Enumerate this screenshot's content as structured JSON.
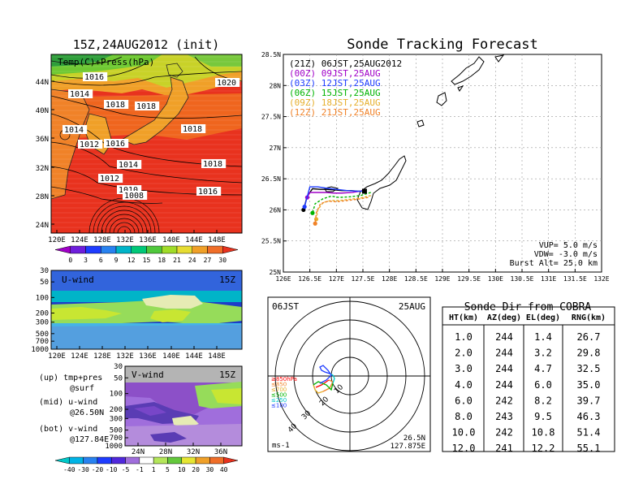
{
  "map_panel": {
    "title": "15Z,24AUG2012 (init)",
    "label": "Temp(C)+Press(hPa)",
    "lat_ticks": [
      "44N",
      "40N",
      "36N",
      "32N",
      "28N",
      "24N"
    ],
    "lon_ticks": [
      "120E",
      "124E",
      "128E",
      "132E",
      "136E",
      "140E",
      "144E",
      "148E"
    ],
    "isobar_labels": [
      "1016",
      "1014",
      "1018",
      "1018",
      "1020",
      "1014",
      "1012",
      "1016",
      "1014",
      "1018",
      "1012",
      "1010",
      "1008",
      "1016",
      "1018"
    ],
    "colorbar_ticks": [
      "0",
      "3",
      "6",
      "9",
      "12",
      "15",
      "18",
      "21",
      "24",
      "27",
      "30"
    ]
  },
  "u_panel": {
    "label": "U-wind",
    "time": "15Z",
    "y_ticks": [
      "30",
      "50",
      "100",
      "200",
      "300",
      "500",
      "700",
      "1000"
    ],
    "x_ticks": [
      "120E",
      "124E",
      "128E",
      "132E",
      "136E",
      "140E",
      "144E",
      "148E"
    ]
  },
  "v_panel": {
    "label": "V-wind",
    "time": "15Z",
    "y_ticks": [
      "30",
      "50",
      "100",
      "200",
      "300",
      "500",
      "700",
      "1000"
    ],
    "x_ticks": [
      "24N",
      "28N",
      "32N",
      "36N"
    ],
    "colorbar_ticks": [
      "-40",
      "-30",
      "-20",
      "-10",
      "-5",
      "-1",
      "1",
      "5",
      "10",
      "20",
      "30",
      "40"
    ]
  },
  "notes": [
    {
      "line1": "(up) tmp+pres",
      "line2": "@surf"
    },
    {
      "line1": "(mid) u-wind",
      "line2": "@26.50N"
    },
    {
      "line1": "(bot) v-wind",
      "line2": "@127.84E"
    }
  ],
  "tracking": {
    "title": "Sonde Tracking Forecast",
    "lat_ticks": [
      "28.5N",
      "28N",
      "27.5N",
      "27N",
      "26.5N",
      "26N",
      "25.5N",
      "25N"
    ],
    "lon_ticks": [
      "126E",
      "126.5E",
      "127E",
      "127.5E",
      "128E",
      "128.5E",
      "129E",
      "129.5E",
      "130E",
      "130.5E",
      "131E",
      "131.5E",
      "132E"
    ],
    "legend": [
      {
        "label": "(21Z)  06JST,25AUG2012",
        "color": "#000000"
      },
      {
        "label": "(00Z)  09JST,25AUG",
        "color": "#a000c8"
      },
      {
        "label": "(03Z)  12JST,25AUG",
        "color": "#1e3cff"
      },
      {
        "label": "(06Z)  15JST,25AUG",
        "color": "#00b400"
      },
      {
        "label": "(09Z)  18JST,25AUG",
        "color": "#e6af2d"
      },
      {
        "label": "(12Z)  21JST,25AUG",
        "color": "#f08228"
      }
    ],
    "info": [
      "VUP=  5.0  m/s",
      "VDW= -3.0  m/s",
      "Burst Alt=  25.0  km"
    ]
  },
  "hodograph": {
    "time_left": "06JST",
    "time_right": "25AUG",
    "pressure_labels": [
      {
        "text": "≥850hPa",
        "color": "#ff0000"
      },
      {
        "text": "≤850",
        "color": "#f08228"
      },
      {
        "text": "≤700",
        "color": "#e6af2d"
      },
      {
        "text": "≤500",
        "color": "#00b400"
      },
      {
        "text": "≤250",
        "color": "#00c8c8"
      },
      {
        "text": "≤100",
        "color": "#1e3cff"
      }
    ],
    "ring_labels": [
      "10",
      "20",
      "30",
      "40"
    ],
    "unit": "ms-1",
    "loc_lat": "26.5N",
    "loc_lon": "127.875E"
  },
  "sonde_dir": {
    "title": "Sonde Dir from COBRA",
    "headers": [
      "HT(km)",
      "AZ(deg)",
      "EL(deg)",
      "RNG(km)"
    ],
    "rows": [
      [
        "1.0",
        "244",
        "1.4",
        "26.7"
      ],
      [
        "2.0",
        "244",
        "3.2",
        "29.8"
      ],
      [
        "3.0",
        "244",
        "4.7",
        "32.5"
      ],
      [
        "4.0",
        "244",
        "6.0",
        "35.0"
      ],
      [
        "6.0",
        "242",
        "8.2",
        "39.7"
      ],
      [
        "8.0",
        "243",
        "9.5",
        "46.3"
      ],
      [
        "10.0",
        "242",
        "10.8",
        "51.4"
      ],
      [
        "12.0",
        "241",
        "12.2",
        "55.1"
      ]
    ]
  },
  "chart_data": [
    {
      "type": "heatmap",
      "title": "15Z,24AUG2012 (init)",
      "variable": "Temp(C)+Press(hPa)",
      "xlabel": "",
      "ylabel": "",
      "xlim": [
        "120E",
        "150E"
      ],
      "ylim": [
        "22N",
        "47N"
      ],
      "colorbar": [
        0,
        3,
        6,
        9,
        12,
        15,
        18,
        21,
        24,
        27,
        30
      ]
    },
    {
      "type": "heatmap",
      "title": "U-wind",
      "xlim": [
        "120E",
        "150E"
      ],
      "ylim_hPa": [
        1000,
        30
      ],
      "colorbar": [
        -40,
        -30,
        -20,
        -10,
        -5,
        -1,
        1,
        5,
        10,
        20,
        30,
        40
      ]
    },
    {
      "type": "heatmap",
      "title": "V-wind",
      "xlim": [
        "22N",
        "40N"
      ],
      "ylim_hPa": [
        1000,
        30
      ],
      "colorbar": [
        -40,
        -30,
        -20,
        -10,
        -5,
        -1,
        1,
        5,
        10,
        20,
        30,
        40
      ]
    },
    {
      "type": "line",
      "title": "Sonde Tracking Forecast",
      "xlim": [
        126,
        132
      ],
      "ylim": [
        25,
        28.5
      ],
      "series": [
        {
          "name": "(21Z) 06JST,25AUG2012",
          "color": "#000000",
          "x": [
            127.53,
            127.4,
            127.28,
            127.1,
            126.98,
            126.82,
            126.7,
            126.55,
            126.45,
            126.38
          ],
          "y": [
            26.3,
            26.3,
            26.31,
            26.31,
            26.32,
            26.33,
            26.33,
            26.34,
            26.22,
            26.0
          ]
        },
        {
          "name": "(00Z) 09JST,25AUG",
          "color": "#a000c8",
          "x": [
            127.57,
            127.45,
            127.3,
            127.1,
            126.95,
            126.8,
            126.65,
            126.5,
            126.45
          ],
          "y": [
            26.32,
            26.3,
            26.28,
            26.27,
            26.27,
            26.28,
            26.28,
            26.28,
            26.2
          ]
        },
        {
          "name": "(03Z) 12JST,25AUG",
          "color": "#1e3cff",
          "x": [
            127.55,
            127.4,
            127.2,
            127.0,
            126.8,
            126.65,
            126.5,
            126.4
          ],
          "y": [
            26.3,
            26.3,
            26.31,
            26.33,
            26.35,
            26.37,
            26.37,
            26.05
          ]
        },
        {
          "name": "(06Z) 15JST,25AUG",
          "color": "#00b400",
          "x": [
            127.65,
            127.45,
            127.25,
            127.05,
            126.9,
            126.75,
            126.6,
            126.55
          ],
          "y": [
            26.28,
            26.23,
            26.21,
            26.2,
            26.22,
            26.18,
            26.1,
            25.95
          ]
        },
        {
          "name": "(09Z) 18JST,25AUG",
          "color": "#e6af2d",
          "x": [
            127.65,
            127.45,
            127.25,
            127.05,
            126.9,
            126.75,
            126.65,
            126.62
          ],
          "y": [
            26.23,
            26.19,
            26.17,
            26.15,
            26.15,
            26.12,
            26.0,
            25.85
          ]
        },
        {
          "name": "(12Z) 21JST,25AUG",
          "color": "#f08228",
          "x": [
            127.6,
            127.4,
            127.2,
            127.0,
            126.85,
            126.7,
            126.62,
            126.6
          ],
          "y": [
            26.2,
            26.17,
            26.15,
            26.13,
            26.14,
            26.1,
            25.95,
            25.78
          ]
        }
      ]
    }
  ]
}
